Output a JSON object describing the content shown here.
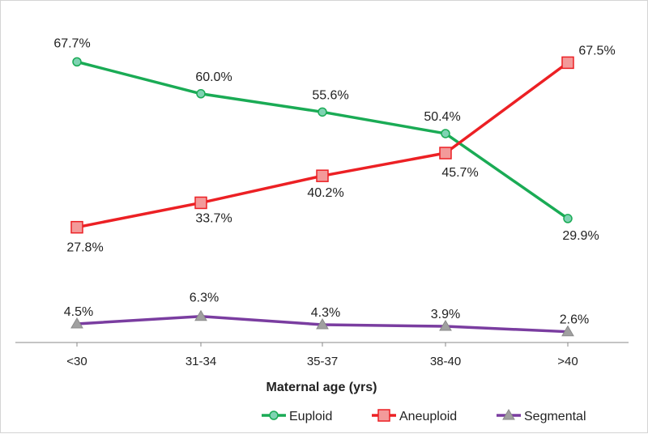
{
  "chart_data": {
    "type": "line",
    "title": "",
    "xlabel": "Maternal age (yrs)",
    "ylabel": "",
    "categories": [
      "<30",
      "31-34",
      "35-37",
      "38-40",
      ">40"
    ],
    "ylim": [
      0,
      75
    ],
    "grid": false,
    "legend_position": "bottom-right",
    "series": [
      {
        "name": "Euploid",
        "color": "#1aab55",
        "marker": "circle",
        "values": [
          67.7,
          60.0,
          55.6,
          50.4,
          29.9
        ],
        "labels": [
          "67.7%",
          "60.0%",
          "55.6%",
          "50.4%",
          "29.9%"
        ]
      },
      {
        "name": "Aneuploid",
        "color": "#ec2024",
        "marker": "square",
        "values": [
          27.8,
          33.7,
          40.2,
          45.7,
          67.5
        ],
        "labels": [
          "27.8%",
          "33.7%",
          "40.2%",
          "45.7%",
          "67.5%"
        ]
      },
      {
        "name": "Segmental",
        "color": "#7a3da0",
        "marker": "triangle",
        "values": [
          4.5,
          6.3,
          4.3,
          3.9,
          2.6
        ],
        "labels": [
          "4.5%",
          "6.3%",
          "4.3%",
          "3.9%",
          "2.6%"
        ]
      }
    ]
  }
}
